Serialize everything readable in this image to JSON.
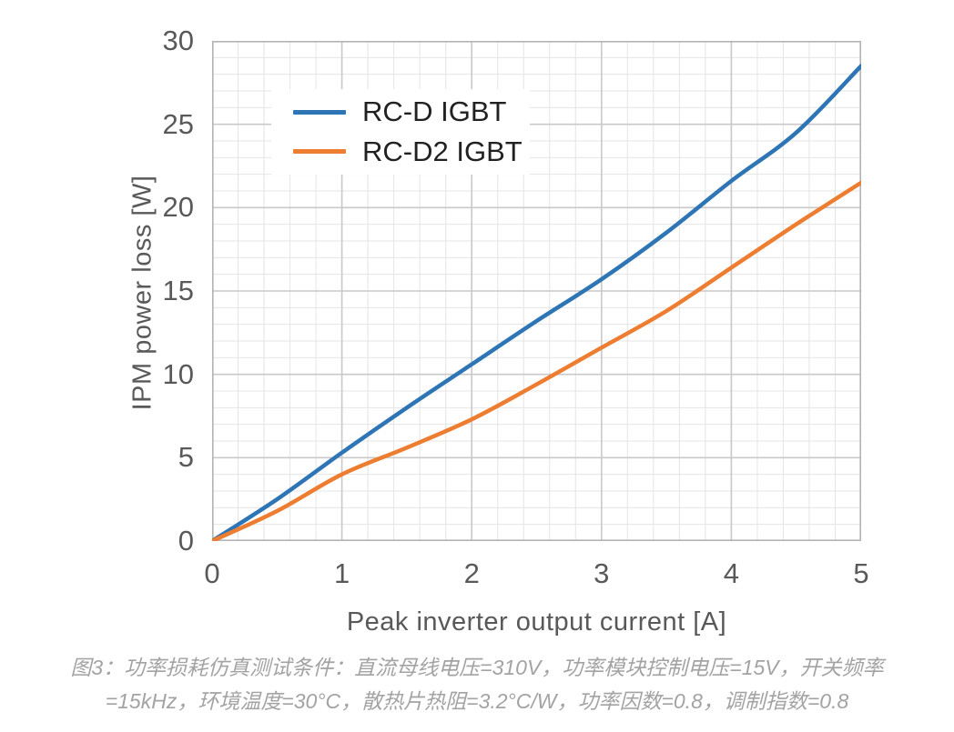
{
  "chart_data": {
    "type": "line",
    "title": "",
    "xlabel": "Peak inverter output current [A]",
    "ylabel": "IPM power loss [W]",
    "xlim": [
      0,
      5
    ],
    "ylim": [
      0,
      30
    ],
    "x_major_ticks": [
      0,
      1,
      2,
      3,
      4,
      5
    ],
    "y_major_ticks": [
      0,
      5,
      10,
      15,
      20,
      25,
      30
    ],
    "x_minor_step": 0.2,
    "y_minor_step": 1,
    "grid": "major and minor gridlines on, plot area boxed",
    "legend_position": "inside top-left, white background",
    "x": [
      0,
      0.5,
      1,
      1.5,
      2,
      2.5,
      3,
      3.5,
      4,
      4.5,
      5
    ],
    "series": [
      {
        "name": "RC-D IGBT",
        "color": "#2E75B6",
        "values": [
          0,
          2.5,
          5.3,
          8.0,
          10.6,
          13.2,
          15.7,
          18.5,
          21.6,
          24.5,
          28.5
        ]
      },
      {
        "name": "RC-D2 IGBT",
        "color": "#ED7D31",
        "values": [
          0,
          1.8,
          4.0,
          5.6,
          7.3,
          9.4,
          11.6,
          13.8,
          16.4,
          19.0,
          21.5
        ]
      }
    ]
  },
  "axes": {
    "x_tick_labels": [
      "0",
      "1",
      "2",
      "3",
      "4",
      "5"
    ],
    "y_tick_labels": [
      "0",
      "5",
      "10",
      "15",
      "20",
      "25",
      "30"
    ]
  },
  "legend": {
    "items": [
      {
        "label": "RC-D IGBT",
        "color": "#2E75B6"
      },
      {
        "label": "RC-D2 IGBT",
        "color": "#ED7D31"
      }
    ]
  },
  "caption": {
    "line1": "图3：功率损耗仿真测试条件：直流母线电压=310V，功率模块控制电压=15V，开关频率",
    "line2": "=15kHz，环境温度=30°C，散热片热阻=3.2°C/W，功率因数=0.8，调制指数=0.8"
  },
  "colors": {
    "series_blue": "#2E75B6",
    "series_orange": "#ED7D31",
    "axis_text": "#595959",
    "legend_text": "#212121",
    "caption_text": "#a3a3a3",
    "grid_minor": "#e4e4e4",
    "grid_major": "#c9c9c9",
    "plot_border": "#b3b3b3",
    "background": "#ffffff"
  }
}
